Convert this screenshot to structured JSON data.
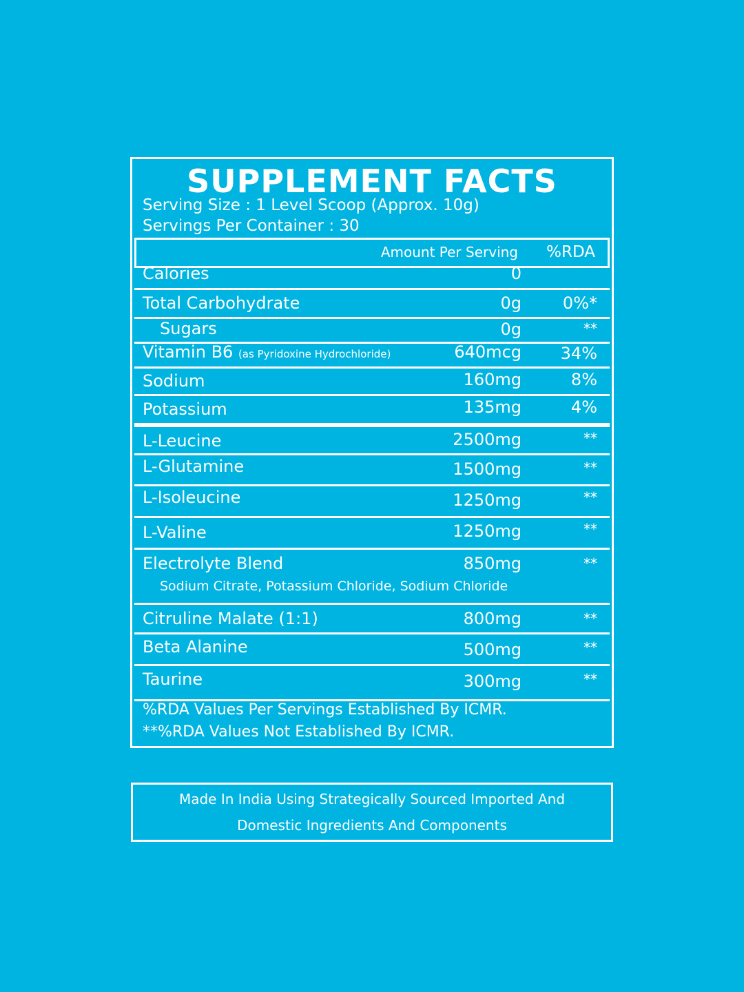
{
  "panel": {
    "title": "SUPPLEMENT FACTS",
    "serving_size": "Serving Size : 1 Level Scoop (Approx. 10g)",
    "servings_per_container": "Servings Per Container : 30",
    "header": {
      "amount": "Amount Per Serving",
      "rda": "%RDA"
    },
    "rows": [
      {
        "name": "Calories",
        "amount": "0",
        "rda": ""
      },
      {
        "name": "Total Carbohydrate",
        "amount": "0g",
        "rda": "0%*"
      },
      {
        "name": "Sugars",
        "amount": "0g",
        "rda": "**"
      },
      {
        "name": "Vitamin B6",
        "name_note": "(as Pyridoxine Hydrochloride)",
        "amount": "640mcg",
        "rda": "34%"
      },
      {
        "name": "Sodium",
        "amount": "160mg",
        "rda": "8%"
      },
      {
        "name": "Potassium",
        "amount": "135mg",
        "rda": "4%"
      },
      {
        "name": "L-Leucine",
        "amount": "2500mg",
        "rda": "**"
      },
      {
        "name": "L-Glutamine",
        "amount": "1500mg",
        "rda": "**"
      },
      {
        "name": "L-Isoleucine",
        "amount": "1250mg",
        "rda": "**"
      },
      {
        "name": "L-Valine",
        "amount": "1250mg",
        "rda": "**"
      },
      {
        "name": "Electrolyte Blend",
        "amount": "850mg",
        "rda": "**",
        "sub": "Sodium Citrate, Potassium Chloride, Sodium Chloride"
      },
      {
        "name": "Citruline Malate (1:1)",
        "amount": "800mg",
        "rda": "**"
      },
      {
        "name": "Beta Alanine",
        "amount": "500mg",
        "rda": "**"
      },
      {
        "name": "Taurine",
        "amount": "300mg",
        "rda": "**"
      }
    ],
    "footnote_1": "%RDA  Values Per Servings Established By ICMR.",
    "footnote_2": "**%RDA  Values Not Established By ICMR."
  },
  "origin": {
    "line_1": "Made In India Using Strategically Sourced Imported And",
    "line_2": "Domestic Ingredients And Components"
  }
}
